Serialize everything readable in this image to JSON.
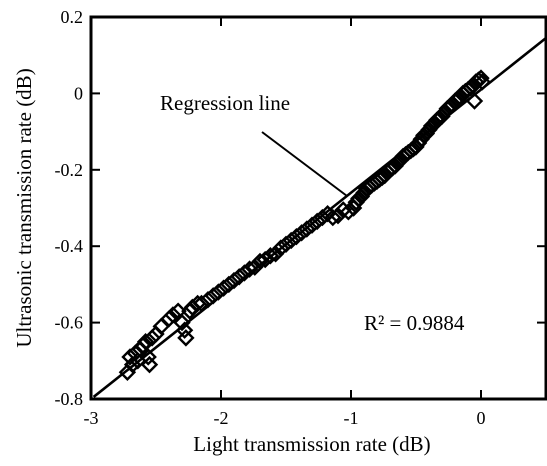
{
  "chart_data": {
    "type": "scatter",
    "title": "",
    "xlabel": "Light transmission rate (dB)",
    "ylabel": "Ultrasonic transmission rate (dB)",
    "xlim": [
      -3,
      0.5
    ],
    "ylim": [
      -0.8,
      0.2
    ],
    "xticks": [
      -3,
      -2,
      -1,
      0
    ],
    "xtick_labels": [
      "-3",
      "-2",
      "-1",
      "0"
    ],
    "yticks": [
      -0.8,
      -0.6,
      -0.4,
      -0.2,
      0,
      0.2
    ],
    "ytick_labels": [
      "-0.8",
      "-0.6",
      "-0.4",
      "-0.2",
      "0",
      "0.2"
    ],
    "grid": false,
    "marker": "diamond",
    "points": [
      [
        -2.72,
        -0.73
      ],
      [
        -2.7,
        -0.69
      ],
      [
        -2.68,
        -0.71
      ],
      [
        -2.66,
        -0.68
      ],
      [
        -2.64,
        -0.7
      ],
      [
        -2.62,
        -0.67
      ],
      [
        -2.6,
        -0.66
      ],
      [
        -2.58,
        -0.65
      ],
      [
        -2.56,
        -0.69
      ],
      [
        -2.55,
        -0.71
      ],
      [
        -2.53,
        -0.64
      ],
      [
        -2.5,
        -0.63
      ],
      [
        -2.46,
        -0.61
      ],
      [
        -2.4,
        -0.59
      ],
      [
        -2.37,
        -0.58
      ],
      [
        -2.33,
        -0.57
      ],
      [
        -2.3,
        -0.6
      ],
      [
        -2.28,
        -0.62
      ],
      [
        -2.27,
        -0.64
      ],
      [
        -2.24,
        -0.57
      ],
      [
        -2.22,
        -0.56
      ],
      [
        -2.18,
        -0.55
      ],
      [
        -2.15,
        -0.55
      ],
      [
        -2.1,
        -0.54
      ],
      [
        -2.06,
        -0.53
      ],
      [
        -2.02,
        -0.52
      ],
      [
        -1.98,
        -0.51
      ],
      [
        -1.94,
        -0.5
      ],
      [
        -1.9,
        -0.49
      ],
      [
        -1.86,
        -0.48
      ],
      [
        -1.82,
        -0.47
      ],
      [
        -1.78,
        -0.46
      ],
      [
        -1.74,
        -0.455
      ],
      [
        -1.7,
        -0.44
      ],
      [
        -1.66,
        -0.435
      ],
      [
        -1.62,
        -0.425
      ],
      [
        -1.58,
        -0.42
      ],
      [
        -1.54,
        -0.405
      ],
      [
        -1.5,
        -0.395
      ],
      [
        -1.46,
        -0.385
      ],
      [
        -1.42,
        -0.375
      ],
      [
        -1.38,
        -0.365
      ],
      [
        -1.34,
        -0.355
      ],
      [
        -1.3,
        -0.345
      ],
      [
        -1.26,
        -0.335
      ],
      [
        -1.22,
        -0.325
      ],
      [
        -1.18,
        -0.315
      ],
      [
        -1.14,
        -0.325
      ],
      [
        -1.1,
        -0.32
      ],
      [
        -1.06,
        -0.305
      ],
      [
        -1.02,
        -0.31
      ],
      [
        -0.98,
        -0.3
      ],
      [
        -0.96,
        -0.285
      ],
      [
        -0.94,
        -0.275
      ],
      [
        -0.92,
        -0.27
      ],
      [
        -0.9,
        -0.26
      ],
      [
        -0.88,
        -0.25
      ],
      [
        -0.86,
        -0.245
      ],
      [
        -0.84,
        -0.24
      ],
      [
        -0.82,
        -0.235
      ],
      [
        -0.8,
        -0.23
      ],
      [
        -0.78,
        -0.225
      ],
      [
        -0.76,
        -0.22
      ],
      [
        -0.74,
        -0.215
      ],
      [
        -0.72,
        -0.205
      ],
      [
        -0.7,
        -0.2
      ],
      [
        -0.68,
        -0.195
      ],
      [
        -0.66,
        -0.19
      ],
      [
        -0.64,
        -0.18
      ],
      [
        -0.62,
        -0.175
      ],
      [
        -0.6,
        -0.165
      ],
      [
        -0.58,
        -0.16
      ],
      [
        -0.56,
        -0.155
      ],
      [
        -0.54,
        -0.15
      ],
      [
        -0.52,
        -0.145
      ],
      [
        -0.5,
        -0.14
      ],
      [
        -0.48,
        -0.13
      ],
      [
        -0.46,
        -0.12
      ],
      [
        -0.44,
        -0.11
      ],
      [
        -0.42,
        -0.105
      ],
      [
        -0.4,
        -0.095
      ],
      [
        -0.38,
        -0.085
      ],
      [
        -0.36,
        -0.08
      ],
      [
        -0.34,
        -0.07
      ],
      [
        -0.32,
        -0.065
      ],
      [
        -0.3,
        -0.06
      ],
      [
        -0.28,
        -0.05
      ],
      [
        -0.26,
        -0.04
      ],
      [
        -0.24,
        -0.035
      ],
      [
        -0.22,
        -0.03
      ],
      [
        -0.2,
        -0.02
      ],
      [
        -0.18,
        -0.015
      ],
      [
        -0.16,
        -0.01
      ],
      [
        -0.14,
        0.0
      ],
      [
        -0.12,
        0.005
      ],
      [
        -0.1,
        0.01
      ],
      [
        -0.08,
        0.015
      ],
      [
        -0.06,
        0.02
      ],
      [
        -0.04,
        0.03
      ],
      [
        -0.02,
        0.035
      ],
      [
        0.0,
        0.04
      ],
      [
        0.01,
        0.03
      ],
      [
        -0.05,
        -0.02
      ]
    ],
    "regression": {
      "slope": 0.27,
      "intercept": 0.01
    },
    "annotations": [
      {
        "text": "Regression line"
      },
      {
        "text": "R² = 0.9884"
      }
    ]
  }
}
